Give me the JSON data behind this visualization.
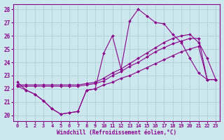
{
  "xlabel": "Windchill (Refroidissement éolien,°C)",
  "x_hours": [
    0,
    1,
    2,
    3,
    4,
    5,
    6,
    7,
    8,
    9,
    10,
    11,
    12,
    13,
    14,
    15,
    16,
    17,
    18,
    19,
    20,
    21,
    22,
    23
  ],
  "line_peak": [
    22.5,
    21.9,
    21.6,
    21.1,
    20.5,
    20.1,
    20.2,
    20.3,
    21.9,
    22.0,
    24.7,
    26.0,
    23.5,
    27.1,
    28.0,
    27.5,
    27.0,
    26.9,
    26.1,
    25.5,
    24.3,
    23.2,
    22.7,
    null
  ],
  "line_rise_high": [
    22.3,
    22.3,
    22.3,
    22.3,
    22.3,
    22.3,
    22.3,
    22.3,
    22.4,
    22.5,
    22.8,
    23.2,
    23.5,
    23.9,
    24.3,
    24.7,
    25.1,
    25.5,
    25.8,
    26.0,
    26.1,
    25.5,
    24.3,
    22.7
  ],
  "line_rise_mid": [
    22.2,
    22.2,
    22.2,
    22.2,
    22.2,
    22.2,
    22.2,
    22.2,
    22.3,
    22.4,
    22.6,
    23.0,
    23.3,
    23.7,
    24.0,
    24.4,
    24.8,
    25.1,
    25.4,
    25.6,
    25.8,
    25.8,
    22.7,
    22.7
  ],
  "line_dip": [
    22.2,
    21.9,
    21.6,
    21.1,
    20.5,
    20.1,
    20.2,
    20.3,
    21.9,
    22.0,
    22.3,
    22.5,
    22.8,
    23.0,
    23.3,
    23.6,
    23.9,
    24.2,
    24.5,
    24.8,
    25.0,
    25.2,
    22.7,
    22.7
  ],
  "color": "#8B008B",
  "bg_color": "#cce8ee",
  "grid_color": "#aaccd4",
  "ylim": [
    19.6,
    28.4
  ],
  "yticks": [
    20,
    21,
    22,
    23,
    24,
    25,
    26,
    27,
    28
  ],
  "xticks": [
    0,
    1,
    2,
    3,
    4,
    5,
    6,
    7,
    8,
    9,
    10,
    11,
    12,
    13,
    14,
    15,
    16,
    17,
    18,
    19,
    20,
    21,
    22,
    23
  ]
}
